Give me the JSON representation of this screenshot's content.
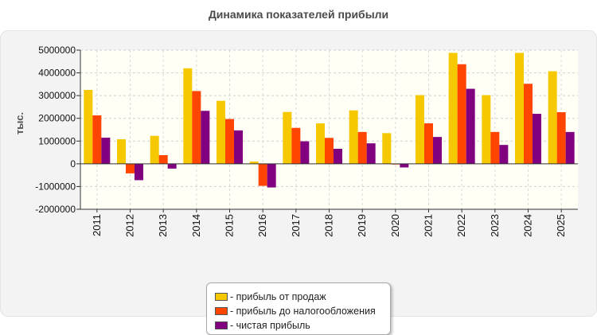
{
  "chart_data": {
    "type": "bar",
    "title": "Динамика показателей прибыли",
    "ylabel": "тыс.",
    "xlabel": "",
    "categories": [
      "2011",
      "2012",
      "2013",
      "2014",
      "2015",
      "2016",
      "2017",
      "2018",
      "2019",
      "2020",
      "2021",
      "2022",
      "2023",
      "2024",
      "2025"
    ],
    "series": [
      {
        "name": "- прибыль от продаж",
        "color": "#f5c800",
        "values": [
          3250000,
          1080000,
          1230000,
          4200000,
          2770000,
          100000,
          2280000,
          1780000,
          2350000,
          1350000,
          3020000,
          4880000,
          3020000,
          4880000,
          4070000
        ]
      },
      {
        "name": "- прибыль до налогообложения",
        "color": "#ff4500",
        "values": [
          2130000,
          -420000,
          380000,
          3200000,
          1970000,
          -970000,
          1580000,
          1140000,
          1400000,
          -30000,
          1780000,
          4380000,
          1400000,
          3520000,
          2270000
        ]
      },
      {
        "name": "- чистая прибыль",
        "color": "#800080",
        "values": [
          1150000,
          -720000,
          -210000,
          2330000,
          1470000,
          -1040000,
          990000,
          660000,
          900000,
          -160000,
          1180000,
          3300000,
          830000,
          2200000,
          1400000
        ]
      }
    ],
    "ylim": [
      -2000000,
      5000000
    ],
    "yticks": [
      5000000,
      4000000,
      3000000,
      2000000,
      1000000,
      0,
      -1000000,
      -2000000
    ],
    "ytick_labels": [
      "5000000",
      "4000000",
      "3000000",
      "2000000",
      "1000000",
      "0",
      "-1000000",
      "-2000000"
    ],
    "grid": true,
    "legend_position": "bottom-center"
  }
}
